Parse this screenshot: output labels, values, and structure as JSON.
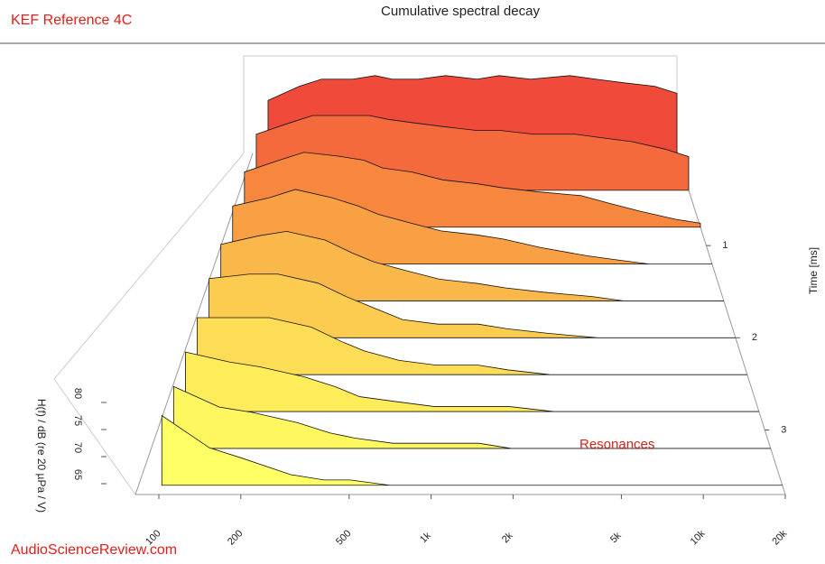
{
  "brand": "KEF Reference 4C",
  "watermark": "AudioScienceReview.com",
  "chart_data": {
    "type": "waterfall",
    "title": "Cumulative spectral decay",
    "ylabel": "H(f) / dB (re 20 µPa / V)",
    "tlabel": "Time [ms]",
    "annotation": "Resonances",
    "x": [
      100,
      150,
      200,
      300,
      400,
      500,
      700,
      1000,
      1500,
      2000,
      3000,
      5000,
      7000,
      10000,
      15000,
      20000
    ],
    "xlim": [
      82,
      20000
    ],
    "xticks": [
      100,
      200,
      500,
      {
        "value": 1000,
        "label": "1k"
      },
      {
        "value": 2000,
        "label": "2k"
      },
      {
        "value": 5000,
        "label": "5k"
      },
      {
        "value": 10000,
        "label": "10k"
      },
      {
        "value": 20000,
        "label": "20k"
      }
    ],
    "log_x": true,
    "ylim": [
      63,
      85
    ],
    "yticks": [
      65,
      70,
      75,
      80
    ],
    "tlim": [
      0,
      3.7
    ],
    "tticks": [
      1,
      2,
      3
    ],
    "series": [
      {
        "time": 0,
        "color": "#f04a3a",
        "values": [
          78,
          82,
          84,
          84,
          85,
          84,
          84,
          85,
          84,
          85,
          84,
          85,
          84,
          83,
          82,
          80
        ]
      },
      {
        "time": 0.4,
        "color": "#f46a3c",
        "values": [
          78,
          81,
          83,
          83,
          83,
          82,
          81,
          80,
          79,
          79,
          78,
          78,
          77,
          76,
          74,
          72
        ]
      },
      {
        "time": 0.8,
        "color": "#f7873f",
        "values": [
          77,
          80,
          82,
          81,
          80,
          78,
          77,
          75,
          74,
          73,
          72,
          71,
          69,
          67,
          65,
          64
        ]
      },
      {
        "time": 1.2,
        "color": "#f9a044",
        "values": [
          77,
          79,
          81,
          79,
          77,
          75,
          73,
          71,
          70,
          69,
          67,
          65,
          64,
          63,
          63,
          63
        ]
      },
      {
        "time": 1.6,
        "color": "#fbb84a",
        "values": [
          76,
          78,
          79,
          77,
          74,
          72,
          70,
          68,
          67,
          66,
          65,
          64,
          63,
          63,
          63,
          63
        ]
      },
      {
        "time": 2.0,
        "color": "#fccc50",
        "values": [
          76,
          77,
          77,
          75,
          72,
          70,
          67,
          66,
          66,
          65,
          64,
          63,
          63,
          63,
          63,
          63
        ]
      },
      {
        "time": 2.4,
        "color": "#fddd55",
        "values": [
          75,
          75,
          75,
          73,
          70,
          68,
          66,
          65,
          65,
          64,
          63,
          63,
          63,
          63,
          63,
          63
        ]
      },
      {
        "time": 2.8,
        "color": "#feec5a",
        "values": [
          75,
          73,
          72,
          70,
          68,
          66,
          65,
          64,
          64,
          64,
          63,
          63,
          63,
          63,
          63,
          63
        ]
      },
      {
        "time": 3.2,
        "color": "#fff75f",
        "values": [
          75,
          71,
          70,
          68,
          66,
          65,
          64,
          64,
          64,
          63,
          63,
          63,
          63,
          63,
          63,
          63
        ]
      },
      {
        "time": 3.6,
        "color": "#ffff66",
        "values": [
          76,
          70,
          68,
          65,
          64,
          64,
          63,
          63,
          63,
          63,
          63,
          63,
          63,
          63,
          63,
          63
        ]
      }
    ]
  }
}
